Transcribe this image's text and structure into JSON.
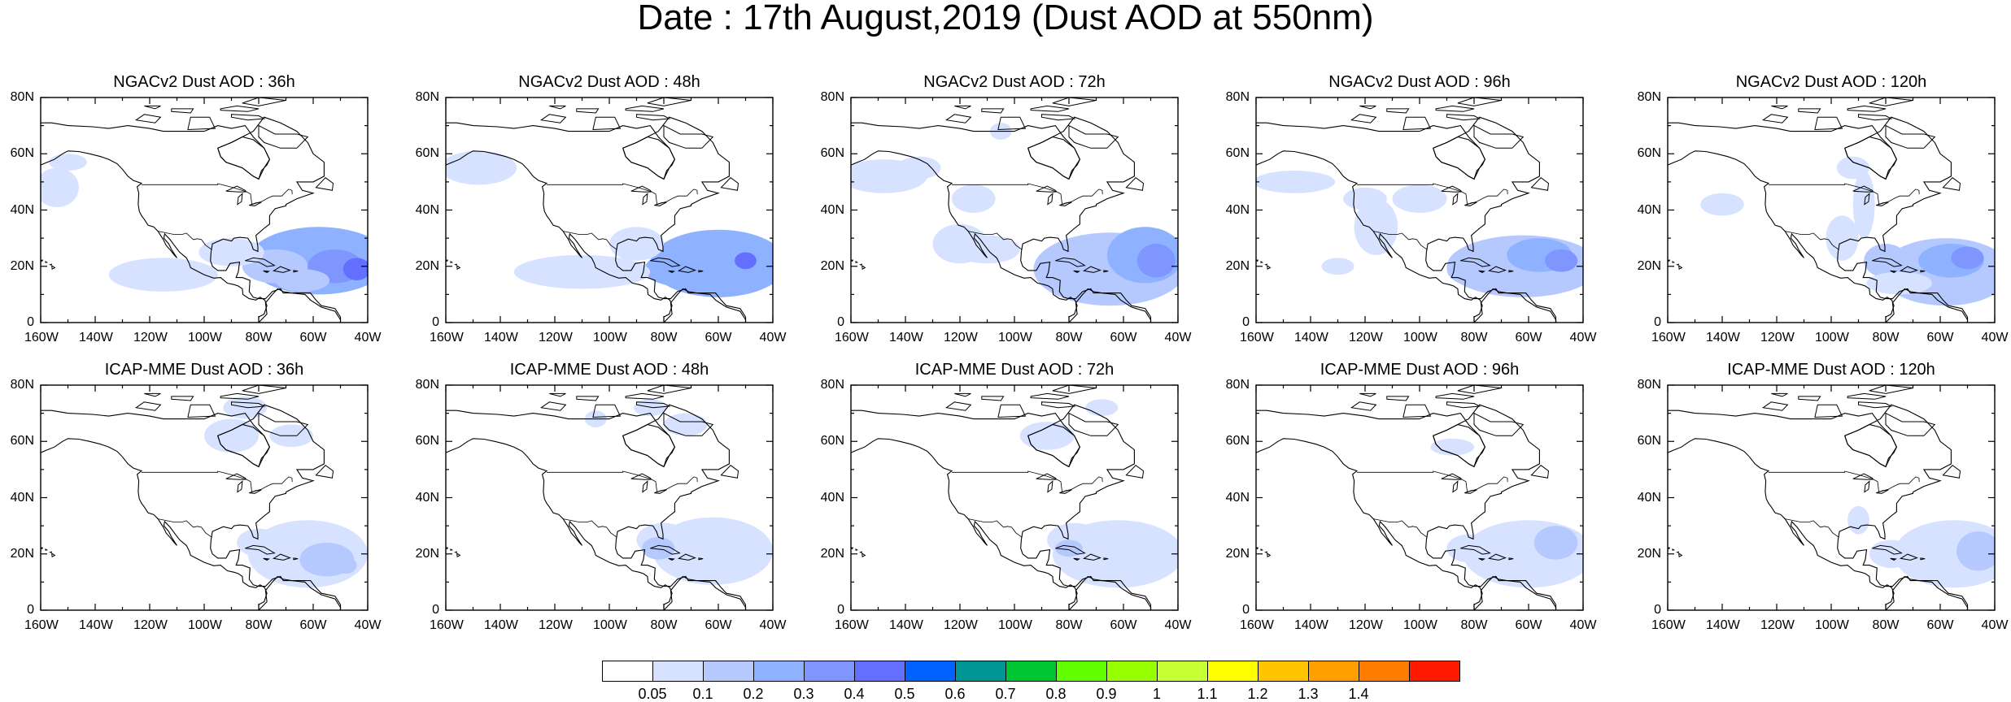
{
  "title": "Date : 17th August,2019 (Dust AOD at 550nm)",
  "panels": [
    {
      "title": "NGACv2 Dust AOD : 36h"
    },
    {
      "title": "NGACv2 Dust AOD : 48h"
    },
    {
      "title": "NGACv2 Dust AOD : 72h"
    },
    {
      "title": "NGACv2 Dust AOD : 96h"
    },
    {
      "title": "NGACv2 Dust AOD : 120h"
    },
    {
      "title": "ICAP-MME Dust AOD : 36h"
    },
    {
      "title": "ICAP-MME Dust AOD : 48h"
    },
    {
      "title": "ICAP-MME Dust AOD : 72h"
    },
    {
      "title": "ICAP-MME Dust AOD : 96h"
    },
    {
      "title": "ICAP-MME Dust AOD : 120h"
    }
  ],
  "axes": {
    "lon_labels": [
      "160W",
      "140W",
      "120W",
      "100W",
      "80W",
      "60W",
      "40W"
    ],
    "lat_labels": [
      "80N",
      "60N",
      "40N",
      "20N",
      "0"
    ],
    "lon_range": [
      -160,
      -40
    ],
    "lat_range": [
      0,
      80
    ]
  },
  "colorbar": {
    "labels": [
      "0.05",
      "0.1",
      "0.2",
      "0.3",
      "0.4",
      "0.5",
      "0.6",
      "0.7",
      "0.8",
      "0.9",
      "1",
      "1.1",
      "1.2",
      "1.3",
      "1.4"
    ],
    "colors": [
      "#ffffff",
      "#d6e2ff",
      "#b5c9ff",
      "#8eb2ff",
      "#7f96ff",
      "#6370ff",
      "#0063ff",
      "#009696",
      "#00c633",
      "#63ff00",
      "#96ff00",
      "#c6ff33",
      "#ffff00",
      "#ffc600",
      "#ffa000",
      "#ff7c00",
      "#ff1900"
    ]
  }
}
